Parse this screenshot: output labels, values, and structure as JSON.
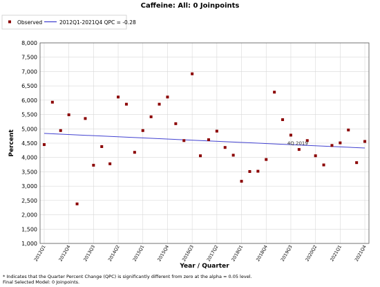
{
  "chart_data": {
    "type": "scatter",
    "title": "Caffeine: All: 0 Joinpoints",
    "xlabel": "Year / Quarter",
    "ylabel": "Percent",
    "ylim": [
      1000,
      8000
    ],
    "yticks": [
      "1,000",
      "1,500",
      "2,000",
      "2,500",
      "3,000",
      "3,500",
      "4,000",
      "4,500",
      "5,000",
      "5,500",
      "6,000",
      "6,500",
      "7,000",
      "7,500",
      "8,000"
    ],
    "x_tick_labels": [
      "2012Q1",
      "2012Q4",
      "2013Q3",
      "2014Q2",
      "2015Q1",
      "2015Q4",
      "2016Q3",
      "2017Q2",
      "2018Q1",
      "2018Q4",
      "2019Q3",
      "2020Q2",
      "2021Q1",
      "2021Q4"
    ],
    "legend": {
      "observed_label": "Observed",
      "trend_label": "2012Q1-2021Q4 QPC = -0.28",
      "placement": "top-left"
    },
    "colors": {
      "observed": "#8b0000",
      "trend": "#4040d0",
      "grid": "#d8d8d8"
    },
    "series": [
      {
        "name": "Observed",
        "x": [
          "2012Q1",
          "2012Q2",
          "2012Q3",
          "2012Q4",
          "2013Q1",
          "2013Q2",
          "2013Q3",
          "2013Q4",
          "2014Q1",
          "2014Q2",
          "2014Q3",
          "2014Q4",
          "2015Q1",
          "2015Q2",
          "2015Q3",
          "2015Q4",
          "2016Q1",
          "2016Q2",
          "2016Q3",
          "2016Q4",
          "2017Q1",
          "2017Q2",
          "2017Q3",
          "2017Q4",
          "2018Q1",
          "2018Q2",
          "2018Q3",
          "2018Q4",
          "2019Q1",
          "2019Q2",
          "2019Q3",
          "2019Q4",
          "2020Q1",
          "2020Q2",
          "2020Q3",
          "2020Q4",
          "2021Q1",
          "2021Q2",
          "2021Q3",
          "2021Q4"
        ],
        "values": [
          4450,
          5930,
          4940,
          5490,
          2380,
          5360,
          3730,
          4380,
          3780,
          6110,
          5860,
          4180,
          4940,
          5420,
          5860,
          6110,
          5180,
          4590,
          6920,
          4060,
          4620,
          4920,
          4350,
          4080,
          3170,
          3510,
          3520,
          3930,
          6280,
          5320,
          4780,
          4280,
          4590,
          4060,
          3740,
          4420,
          4510,
          4960,
          3820,
          4560
        ]
      },
      {
        "name": "2012Q1-2021Q4 QPC = -0.28",
        "type": "line",
        "x": [
          "2012Q1",
          "2021Q4"
        ],
        "values": [
          4840,
          4330
        ]
      }
    ],
    "annotations": [
      {
        "text": "4Q 2019",
        "x": "2019Q4",
        "y": 4420
      }
    ],
    "grid": true
  },
  "footnotes": [
    "* Indicates that the Quarter Percent Change (QPC) is significantly different from zero at the alpha = 0.05 level.",
    "Final Selected Model: 0 Joinpoints."
  ]
}
